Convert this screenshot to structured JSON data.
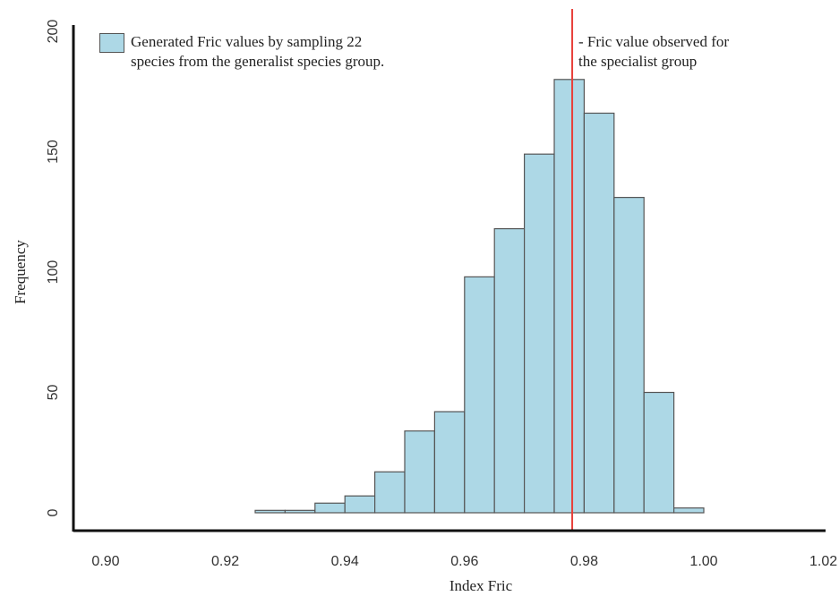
{
  "chart_data": {
    "type": "bar",
    "subtype": "histogram",
    "xlabel": "Index Fric",
    "ylabel": "Frequency",
    "xlim": [
      0.89,
      1.02
    ],
    "ylim": [
      0,
      200
    ],
    "x_ticks": [
      "0.90",
      "0.92",
      "0.94",
      "0.96",
      "0.98",
      "1.00",
      "1.02"
    ],
    "x_tick_values": [
      0.9,
      0.92,
      0.94,
      0.96,
      0.98,
      1.0,
      1.02
    ],
    "y_ticks": [
      "0",
      "50",
      "100",
      "150",
      "200"
    ],
    "y_tick_values": [
      0,
      50,
      100,
      150,
      200
    ],
    "bin_width": 0.005,
    "bins": [
      {
        "start": 0.925,
        "count": 1
      },
      {
        "start": 0.93,
        "count": 1
      },
      {
        "start": 0.935,
        "count": 4
      },
      {
        "start": 0.94,
        "count": 7
      },
      {
        "start": 0.945,
        "count": 17
      },
      {
        "start": 0.95,
        "count": 34
      },
      {
        "start": 0.955,
        "count": 42
      },
      {
        "start": 0.96,
        "count": 98
      },
      {
        "start": 0.965,
        "count": 118
      },
      {
        "start": 0.97,
        "count": 149
      },
      {
        "start": 0.975,
        "count": 180
      },
      {
        "start": 0.98,
        "count": 166
      },
      {
        "start": 0.985,
        "count": 131
      },
      {
        "start": 0.99,
        "count": 50
      },
      {
        "start": 0.995,
        "count": 2
      }
    ],
    "observed_line": {
      "x": 0.978,
      "color": "#e8403a"
    },
    "bar_fill": "#add8e6",
    "bar_stroke": "#555555",
    "legend": {
      "entries": [
        {
          "label_line1": "Generated Fric values by sampling 22",
          "label_line2": "species from the generalist species group."
        }
      ],
      "observed_label_line1": "- Fric value observed for",
      "observed_label_line2": "the specialist group",
      "placement": "top-left"
    },
    "grid": false
  }
}
